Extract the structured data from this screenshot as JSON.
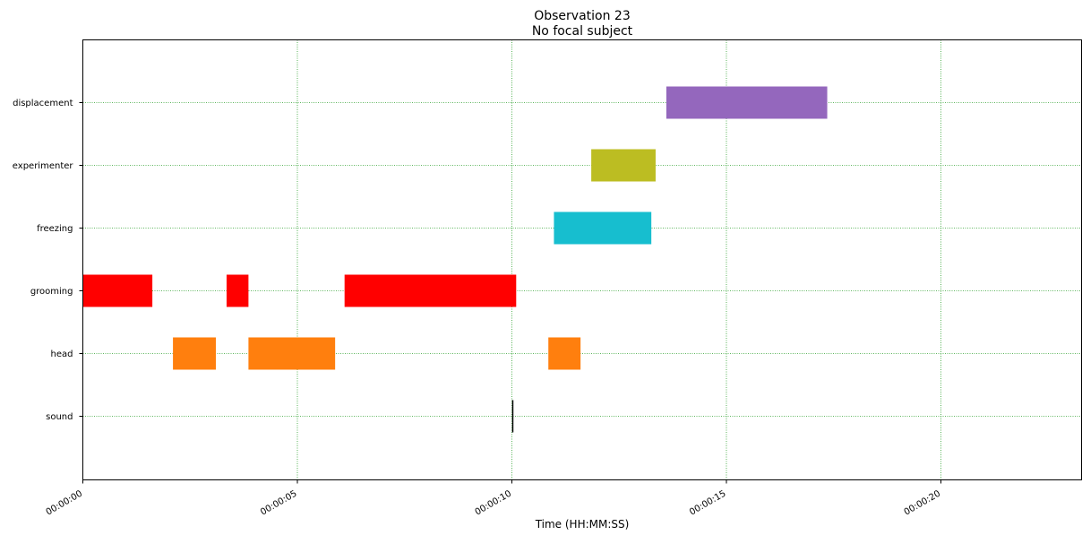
{
  "chart_data": {
    "type": "bar",
    "orientation": "horizontal-timeline",
    "title": "Observation 23",
    "subtitle": "No focal subject",
    "xlabel": "Time (HH:MM:SS)",
    "ylabel": "",
    "xlim": [
      0,
      23.3
    ],
    "x_ticks": [
      0,
      5,
      10,
      15,
      20
    ],
    "x_tick_labels": [
      "00:00:00",
      "00:00:05",
      "00:00:10",
      "00:00:15",
      "00:00:20"
    ],
    "categories": [
      "displacement",
      "experimenter",
      "freezing",
      "grooming",
      "head",
      "sound"
    ],
    "grid": true,
    "grid_color": "#2ca02c",
    "events": [
      {
        "behavior": "displacement",
        "start": 13.6,
        "end": 17.35,
        "color": "#9467bd"
      },
      {
        "behavior": "experimenter",
        "start": 11.85,
        "end": 13.35,
        "color": "#bcbd22"
      },
      {
        "behavior": "freezing",
        "start": 10.98,
        "end": 13.25,
        "color": "#17becf"
      },
      {
        "behavior": "grooming",
        "start": 0.0,
        "end": 1.62,
        "color": "#ff0000"
      },
      {
        "behavior": "grooming",
        "start": 3.35,
        "end": 3.86,
        "color": "#ff0000"
      },
      {
        "behavior": "grooming",
        "start": 6.1,
        "end": 10.1,
        "color": "#ff0000"
      },
      {
        "behavior": "head",
        "start": 2.1,
        "end": 3.1,
        "color": "#ff7f0e"
      },
      {
        "behavior": "head",
        "start": 3.86,
        "end": 5.88,
        "color": "#ff7f0e"
      },
      {
        "behavior": "head",
        "start": 10.85,
        "end": 11.6,
        "color": "#ff7f0e"
      },
      {
        "behavior": "sound",
        "start": 10.02,
        "end": 10.02,
        "color": "#000000",
        "point_event": true
      }
    ]
  }
}
